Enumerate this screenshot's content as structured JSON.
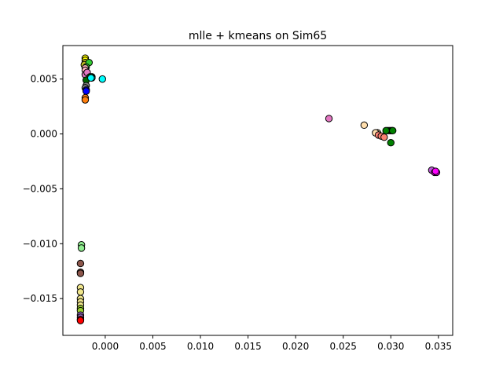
{
  "chart_data": {
    "type": "scatter",
    "title": "mlle + kmeans on Sim65",
    "xlabel": "",
    "ylabel": "",
    "xlim": [
      -0.00445,
      0.0365
    ],
    "ylim": [
      -0.01835,
      0.00805
    ],
    "grid": false,
    "legend": "none",
    "x_ticks": [
      {
        "value": 0.0,
        "label": "0.000"
      },
      {
        "value": 0.005,
        "label": "0.005"
      },
      {
        "value": 0.01,
        "label": "0.010"
      },
      {
        "value": 0.015,
        "label": "0.015"
      },
      {
        "value": 0.02,
        "label": "0.020"
      },
      {
        "value": 0.025,
        "label": "0.025"
      },
      {
        "value": 0.03,
        "label": "0.030"
      },
      {
        "value": 0.035,
        "label": "0.035"
      }
    ],
    "y_ticks": [
      {
        "value": 0.005,
        "label": "0.005"
      },
      {
        "value": 0.0,
        "label": "0.000"
      },
      {
        "value": -0.005,
        "label": "−0.005"
      },
      {
        "value": -0.01,
        "label": "−0.010"
      },
      {
        "value": -0.015,
        "label": "−0.015"
      }
    ],
    "marker_edge_color": "#000000",
    "series": [
      {
        "color": "#90ee90",
        "points": [
          [
            -0.0025,
            -0.0101
          ],
          [
            -0.0025,
            -0.0104
          ]
        ]
      },
      {
        "color": "#8c564b",
        "points": [
          [
            -0.0026,
            -0.0118
          ],
          [
            -0.0026,
            -0.0126
          ],
          [
            -0.0026,
            -0.0127
          ]
        ]
      },
      {
        "color": "#f0e68c",
        "points": [
          [
            -0.0026,
            -0.014
          ],
          [
            -0.0026,
            -0.0144
          ],
          [
            -0.0026,
            -0.015
          ],
          [
            -0.0026,
            -0.0153
          ],
          [
            -0.0026,
            -0.0156
          ]
        ]
      },
      {
        "color": "#9acd32",
        "points": [
          [
            -0.0026,
            -0.0159
          ],
          [
            -0.0026,
            -0.0161
          ]
        ]
      },
      {
        "color": "#9467bd",
        "points": [
          [
            -0.0026,
            -0.0165
          ],
          [
            -0.0026,
            -0.0167
          ]
        ]
      },
      {
        "color": "#ff0000",
        "points": [
          [
            -0.0026,
            -0.0169
          ],
          [
            -0.0026,
            -0.017
          ]
        ]
      },
      {
        "color": "#ffff00",
        "points": [
          [
            -0.0021,
            0.0069
          ],
          [
            -0.0021,
            0.0067
          ]
        ]
      },
      {
        "color": "#bcbd22",
        "points": [
          [
            -0.0021,
            0.0065
          ],
          [
            -0.0022,
            0.0063
          ]
        ]
      },
      {
        "color": "#32cd32",
        "points": [
          [
            -0.0017,
            0.0065
          ],
          [
            -0.002,
            0.0061
          ]
        ]
      },
      {
        "color": "#ffb6c1",
        "points": [
          [
            -0.0021,
            0.006
          ],
          [
            -0.0021,
            0.0058
          ]
        ]
      },
      {
        "color": "#ff7f0e",
        "points": [
          [
            -0.0021,
            0.0033
          ],
          [
            -0.0021,
            0.0031
          ]
        ]
      },
      {
        "color": "#e377c2",
        "points": [
          [
            -0.002,
            0.0055
          ],
          [
            -0.0021,
            0.0054
          ],
          [
            -0.0019,
            0.0056
          ]
        ]
      },
      {
        "color": "#006400",
        "points": [
          [
            -0.0016,
            0.0052
          ],
          [
            -0.002,
            0.0049
          ],
          [
            -0.0014,
            0.0052
          ]
        ]
      },
      {
        "color": "#808080",
        "points": [
          [
            -0.002,
            0.0044
          ],
          [
            -0.0021,
            0.0042
          ]
        ]
      },
      {
        "color": "#0000ff",
        "points": [
          [
            -0.002,
            0.004
          ],
          [
            -0.002,
            0.0039
          ]
        ]
      },
      {
        "color": "#00ffff",
        "points": [
          [
            -0.0003,
            0.005
          ],
          [
            -0.0014,
            0.0051
          ],
          [
            -0.0015,
            0.0051
          ]
        ]
      },
      {
        "color": "#e377c2",
        "points": [
          [
            0.0235,
            0.0014
          ]
        ]
      },
      {
        "color": "#ffdead",
        "points": [
          [
            0.0272,
            0.0008
          ],
          [
            0.0286,
            0.0001
          ],
          [
            0.0284,
            0.0001
          ]
        ]
      },
      {
        "color": "#fa8072",
        "points": [
          [
            0.0287,
            -0.0001
          ],
          [
            0.029,
            -0.0002
          ],
          [
            0.0293,
            -0.0003
          ]
        ]
      },
      {
        "color": "#008000",
        "points": [
          [
            0.0297,
            0.0003
          ],
          [
            0.0299,
            0.0003
          ],
          [
            0.0301,
            0.0003
          ],
          [
            0.0302,
            0.0003
          ],
          [
            0.0295,
            0.0003
          ],
          [
            0.03,
            -0.0008
          ]
        ]
      },
      {
        "color": "#ba55d3",
        "points": [
          [
            0.0343,
            -0.0033
          ]
        ]
      },
      {
        "color": "#ff00ff",
        "points": [
          [
            0.0346,
            -0.0035
          ],
          [
            0.0348,
            -0.0035
          ],
          [
            0.0347,
            -0.0034
          ]
        ]
      }
    ]
  }
}
